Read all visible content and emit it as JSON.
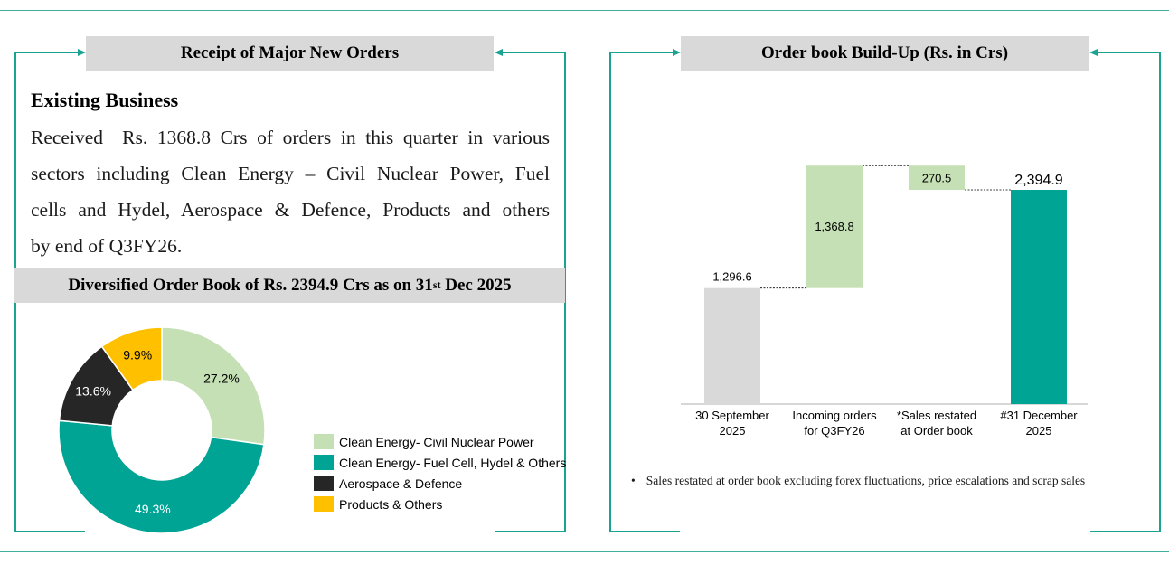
{
  "left_panel": {
    "header": "Receipt of Major New Orders",
    "section_title": "Existing Business",
    "body_lines": [
      "Received  Rs. 1368.8 Crs of orders in this quarter in various",
      "sectors including Clean Energy – Civil Nuclear Power, Fuel",
      "cells and Hydel, Aerospace & Defence, Products and others",
      "by end of Q3FY26."
    ],
    "subheader_prefix": "Diversified Order Book of Rs. 2394.9 Crs as on 31",
    "subheader_sup": "st",
    "subheader_suffix": " Dec 2025"
  },
  "right_panel": {
    "header": "Order book Build-Up (Rs. in Crs)",
    "footnote": "Sales restated at order book excluding forex fluctuations, price escalations and scrap sales"
  },
  "colors": {
    "teal": "#00a494",
    "light_green": "#c5e0b4",
    "gray": "#d9d9d9",
    "dark": "#262626",
    "yellow": "#ffc000",
    "frame": "#1aa391"
  },
  "chart_data": [
    {
      "type": "pie",
      "style": "donut",
      "title": "Diversified Order Book of Rs. 2394.9 Crs as on 31st Dec 2025",
      "legend_position": "right",
      "slices": [
        {
          "name": "Clean Energy- Civil Nuclear Power",
          "value": 27.2,
          "label": "27.2%",
          "color": "#c5e0b4"
        },
        {
          "name": "Clean Energy- Fuel Cell, Hydel & Others",
          "value": 49.3,
          "label": "49.3%",
          "color": "#00a494"
        },
        {
          "name": "Aerospace & Defence",
          "value": 13.6,
          "label": "13.6%",
          "color": "#262626"
        },
        {
          "name": "Products & Others",
          "value": 9.9,
          "label": "9.9%",
          "color": "#ffc000"
        }
      ]
    },
    {
      "type": "bar",
      "style": "waterfall",
      "title": "Order book Build-Up (Rs. in Crs)",
      "grid": false,
      "ylim": [
        0,
        2600
      ],
      "bars": [
        {
          "category_lines": [
            "30 September",
            "2025"
          ],
          "start": 0,
          "end": 1296.6,
          "label": "1,296.6",
          "color": "#d9d9d9"
        },
        {
          "category_lines": [
            "Incoming orders",
            "for Q3FY26"
          ],
          "start": 1296.6,
          "end": 2665.4,
          "label": "1,368.8",
          "color": "#c5e0b4"
        },
        {
          "category_lines": [
            "*Sales restated",
            "at Order book"
          ],
          "start": 2394.9,
          "end": 2665.4,
          "label": "270.5",
          "color": "#c5e0b4"
        },
        {
          "category_lines": [
            "#31 December",
            "2025"
          ],
          "start": 0,
          "end": 2394.9,
          "label": "2,394.9",
          "color": "#00a494"
        }
      ]
    }
  ]
}
